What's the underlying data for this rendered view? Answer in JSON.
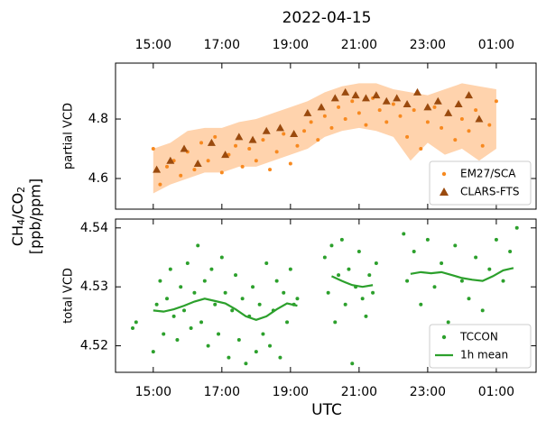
{
  "title": "2022-04-15",
  "xlabel": "UTC",
  "ylabel": {
    "parts": [
      "CH",
      "4",
      "/CO",
      "2"
    ],
    "unit": "[ppb/ppm]"
  },
  "chart_data": [
    {
      "type": "scatter",
      "ylabel": "partial VCD",
      "xtick_side": "top",
      "legend": "lower right",
      "xlim": [
        13.9,
        26.16
      ],
      "ylim": [
        4.497,
        4.988
      ],
      "xticks": [
        {
          "value": 15,
          "label": "15:00"
        },
        {
          "value": 17,
          "label": "17:00"
        },
        {
          "value": 19,
          "label": "19:00"
        },
        {
          "value": 21,
          "label": "21:00"
        },
        {
          "value": 23,
          "label": "23:00"
        },
        {
          "value": 25,
          "label": "01:00"
        }
      ],
      "yticks": [
        4.6,
        4.8
      ],
      "series": [
        {
          "type": "band",
          "color": "#ffd3ad",
          "x": [
            15,
            15.5,
            16,
            16.5,
            17,
            17.5,
            18,
            18.5,
            19,
            19.5,
            20,
            20.5,
            21,
            21.5,
            22,
            22.5,
            23,
            23.5,
            24,
            24.5,
            25
          ],
          "lower": [
            4.55,
            4.58,
            4.6,
            4.62,
            4.62,
            4.64,
            4.64,
            4.66,
            4.68,
            4.7,
            4.74,
            4.76,
            4.77,
            4.76,
            4.74,
            4.66,
            4.72,
            4.68,
            4.7,
            4.66,
            4.7
          ],
          "upper": [
            4.7,
            4.72,
            4.76,
            4.77,
            4.77,
            4.79,
            4.8,
            4.82,
            4.84,
            4.86,
            4.89,
            4.91,
            4.92,
            4.92,
            4.9,
            4.89,
            4.88,
            4.9,
            4.92,
            4.91,
            4.9
          ]
        },
        {
          "type": "scatter",
          "name": "EM27/SCA",
          "marker": "circle",
          "color": "#f7891f",
          "x": [
            15.0,
            15.2,
            15.4,
            15.6,
            15.8,
            16.0,
            16.2,
            16.4,
            16.6,
            16.8,
            17.0,
            17.2,
            17.4,
            17.6,
            17.8,
            18.0,
            18.2,
            18.4,
            18.6,
            18.8,
            19.0,
            19.2,
            19.4,
            19.6,
            19.8,
            20.0,
            20.2,
            20.4,
            20.6,
            20.8,
            21.0,
            21.2,
            21.4,
            21.6,
            21.8,
            22.0,
            22.2,
            22.4,
            22.6,
            22.8,
            23.0,
            23.2,
            23.4,
            23.6,
            23.8,
            24.0,
            24.2,
            24.4,
            24.6,
            24.8,
            25.0
          ],
          "values": [
            4.7,
            4.58,
            4.64,
            4.66,
            4.61,
            4.69,
            4.63,
            4.72,
            4.66,
            4.74,
            4.62,
            4.68,
            4.71,
            4.64,
            4.7,
            4.66,
            4.73,
            4.63,
            4.69,
            4.75,
            4.65,
            4.71,
            4.76,
            4.79,
            4.73,
            4.81,
            4.77,
            4.84,
            4.8,
            4.86,
            4.82,
            4.78,
            4.87,
            4.83,
            4.79,
            4.85,
            4.81,
            4.74,
            4.83,
            4.7,
            4.79,
            4.84,
            4.77,
            4.82,
            4.73,
            4.8,
            4.76,
            4.83,
            4.71,
            4.78,
            4.86
          ]
        },
        {
          "type": "scatter",
          "name": "CLARS-FTS",
          "marker": "triangle",
          "color": "#9a4a0e",
          "x": [
            15.1,
            15.5,
            15.9,
            16.3,
            16.7,
            17.1,
            17.5,
            17.9,
            18.3,
            18.7,
            19.1,
            19.5,
            19.9,
            20.3,
            20.6,
            20.9,
            21.2,
            21.5,
            21.8,
            22.1,
            22.4,
            22.7,
            23.0,
            23.3,
            23.6,
            23.9,
            24.2,
            24.5
          ],
          "values": [
            4.63,
            4.66,
            4.7,
            4.65,
            4.72,
            4.68,
            4.74,
            4.73,
            4.76,
            4.77,
            4.75,
            4.82,
            4.84,
            4.87,
            4.89,
            4.88,
            4.87,
            4.88,
            4.86,
            4.87,
            4.85,
            4.89,
            4.84,
            4.86,
            4.82,
            4.85,
            4.88,
            4.8
          ]
        }
      ]
    },
    {
      "type": "scatter",
      "ylabel": "total VCD",
      "xtick_side": "bottom",
      "legend": "lower right",
      "xlim": [
        13.9,
        26.16
      ],
      "ylim": [
        4.5155,
        4.5415
      ],
      "xticks": [
        {
          "value": 15,
          "label": "15:00"
        },
        {
          "value": 17,
          "label": "17:00"
        },
        {
          "value": 19,
          "label": "19:00"
        },
        {
          "value": 21,
          "label": "21:00"
        },
        {
          "value": 23,
          "label": "23:00"
        },
        {
          "value": 25,
          "label": "01:00"
        }
      ],
      "yticks": [
        4.52,
        4.53,
        4.54
      ],
      "series": [
        {
          "type": "scatter",
          "name": "TCCON",
          "marker": "circle",
          "color": "#2ca02c",
          "x": [
            14.4,
            14.5,
            15.0,
            15.1,
            15.2,
            15.3,
            15.4,
            15.5,
            15.6,
            15.7,
            15.8,
            15.9,
            16.0,
            16.1,
            16.2,
            16.3,
            16.4,
            16.5,
            16.6,
            16.7,
            16.8,
            16.9,
            17.0,
            17.1,
            17.2,
            17.3,
            17.4,
            17.5,
            17.6,
            17.7,
            17.8,
            17.9,
            18.0,
            18.1,
            18.2,
            18.3,
            18.4,
            18.5,
            18.6,
            18.7,
            18.8,
            18.9,
            19.0,
            19.1,
            19.2,
            20.0,
            20.1,
            20.2,
            20.3,
            20.4,
            20.5,
            20.6,
            20.7,
            20.8,
            20.9,
            21.0,
            21.1,
            21.2,
            21.3,
            21.4,
            21.5,
            22.3,
            22.4,
            22.6,
            22.8,
            23.0,
            23.2,
            23.4,
            23.6,
            23.8,
            24.0,
            24.2,
            24.4,
            24.6,
            24.8,
            25.0,
            25.2,
            25.4,
            25.6
          ],
          "values": [
            4.523,
            4.524,
            4.519,
            4.527,
            4.531,
            4.522,
            4.528,
            4.533,
            4.525,
            4.521,
            4.53,
            4.526,
            4.534,
            4.523,
            4.529,
            4.537,
            4.524,
            4.531,
            4.52,
            4.533,
            4.527,
            4.522,
            4.535,
            4.529,
            4.518,
            4.526,
            4.532,
            4.521,
            4.528,
            4.517,
            4.525,
            4.53,
            4.519,
            4.527,
            4.522,
            4.534,
            4.52,
            4.526,
            4.531,
            4.518,
            4.529,
            4.524,
            4.533,
            4.527,
            4.528,
            4.535,
            4.529,
            4.537,
            4.524,
            4.532,
            4.538,
            4.527,
            4.533,
            4.517,
            4.53,
            4.536,
            4.528,
            4.525,
            4.532,
            4.529,
            4.534,
            4.539,
            4.531,
            4.536,
            4.527,
            4.538,
            4.53,
            4.534,
            4.524,
            4.537,
            4.531,
            4.528,
            4.535,
            4.526,
            4.533,
            4.538,
            4.531,
            4.536,
            4.54
          ]
        },
        {
          "type": "line",
          "name": "1h mean",
          "color": "#2ca02c",
          "x": [
            15.0,
            15.3,
            15.6,
            15.9,
            16.2,
            16.5,
            16.8,
            17.1,
            17.4,
            17.7,
            18.0,
            18.3,
            18.6,
            18.9,
            19.2,
            19.6,
            20.2,
            20.5,
            20.8,
            21.1,
            21.4,
            21.9,
            22.5,
            22.8,
            23.1,
            23.4,
            23.7,
            24.0,
            24.3,
            24.6,
            24.9,
            25.2,
            25.5
          ],
          "values": [
            4.526,
            4.5258,
            4.5262,
            4.5268,
            4.5275,
            4.528,
            4.5276,
            4.5272,
            4.5262,
            4.525,
            4.5244,
            4.525,
            4.5262,
            4.5272,
            4.5268,
            null,
            4.5318,
            4.531,
            4.5303,
            4.53,
            4.5303,
            null,
            4.5322,
            4.5325,
            4.5323,
            4.5325,
            4.532,
            4.5315,
            4.5312,
            4.531,
            4.5318,
            4.5328,
            4.5332
          ]
        }
      ]
    }
  ]
}
